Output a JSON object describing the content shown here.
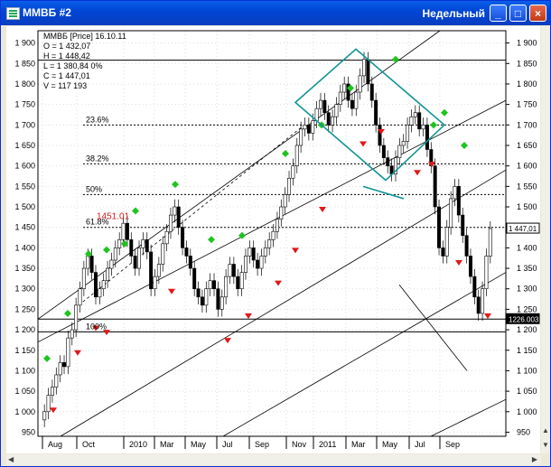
{
  "window": {
    "title": "ММВБ #2",
    "period": "Недельный",
    "buttons": {
      "minimize": "_",
      "maximize": "□",
      "close": "×"
    }
  },
  "info_box": {
    "header": "ММВБ [Price] 16.10.11",
    "open": "O = 1 432,07",
    "high": "H = 1 448,42",
    "low": "L = 1 380,84 0%",
    "close": "C = 1 447,01",
    "volume": "V = 117 193"
  },
  "chart_data": {
    "type": "candlestick",
    "y_ticks": [
      950,
      1000,
      1050,
      1100,
      1150,
      1200,
      1250,
      1300,
      1350,
      1400,
      1450,
      1500,
      1550,
      1600,
      1650,
      1700,
      1750,
      1800,
      1850,
      1900
    ],
    "y_tick_labels": [
      "950",
      "1 000",
      "1 050",
      "1 100",
      "1 150",
      "1 200",
      "1 250",
      "1 300",
      "1 350",
      "1 400",
      "1 450",
      "1 500",
      "1 550",
      "1 600",
      "1 650",
      "1 700",
      "1 750",
      "1 800",
      "1 850",
      "1 900"
    ],
    "ylim": [
      940,
      1930
    ],
    "x_labels": [
      "Aug",
      "Oct",
      "2010",
      "Mar",
      "May",
      "Jul",
      "Sep",
      "Nov",
      "2011",
      "Mar",
      "May",
      "Jul",
      "Sep"
    ],
    "fib_levels": [
      {
        "label": "23.6%",
        "value": 1700
      },
      {
        "label": "38.2%",
        "value": 1605
      },
      {
        "label": "50%",
        "value": 1530
      },
      {
        "label": "61.8%",
        "value": 1450
      },
      {
        "label": "100%",
        "value": 1195
      }
    ],
    "annotations": [
      {
        "label": "1451.01",
        "value": 1470
      }
    ],
    "price_tags": [
      {
        "label": "1 447,01",
        "value": 1447
      },
      {
        "label": "1226.003",
        "value": 1226
      }
    ],
    "horizontal_lines": [
      1858,
      1700,
      1605,
      1530,
      1450,
      1226,
      1195
    ],
    "candles": [
      1000,
      1040,
      1060,
      1090,
      1120,
      1110,
      1180,
      1200,
      1260,
      1300,
      1350,
      1380,
      1340,
      1280,
      1300,
      1320,
      1350,
      1370,
      1400,
      1420,
      1460,
      1420,
      1380,
      1350,
      1400,
      1420,
      1390,
      1300,
      1330,
      1360,
      1410,
      1440,
      1480,
      1500,
      1450,
      1400,
      1380,
      1350,
      1300,
      1280,
      1260,
      1300,
      1320,
      1300,
      1250,
      1280,
      1330,
      1360,
      1330,
      1300,
      1340,
      1380,
      1400,
      1370,
      1350,
      1380,
      1400,
      1420,
      1440,
      1470,
      1500,
      1530,
      1570,
      1600,
      1650,
      1690,
      1700,
      1680,
      1710,
      1740,
      1760,
      1730,
      1700,
      1720,
      1750,
      1780,
      1800,
      1760,
      1740,
      1780,
      1820,
      1860,
      1800,
      1760,
      1700,
      1650,
      1620,
      1600,
      1580,
      1620,
      1650,
      1660,
      1700,
      1720,
      1730,
      1690,
      1700,
      1640,
      1600,
      1500,
      1400,
      1380,
      1450,
      1520,
      1550,
      1480,
      1430,
      1380,
      1330,
      1280,
      1240,
      1300,
      1380,
      1447
    ]
  }
}
